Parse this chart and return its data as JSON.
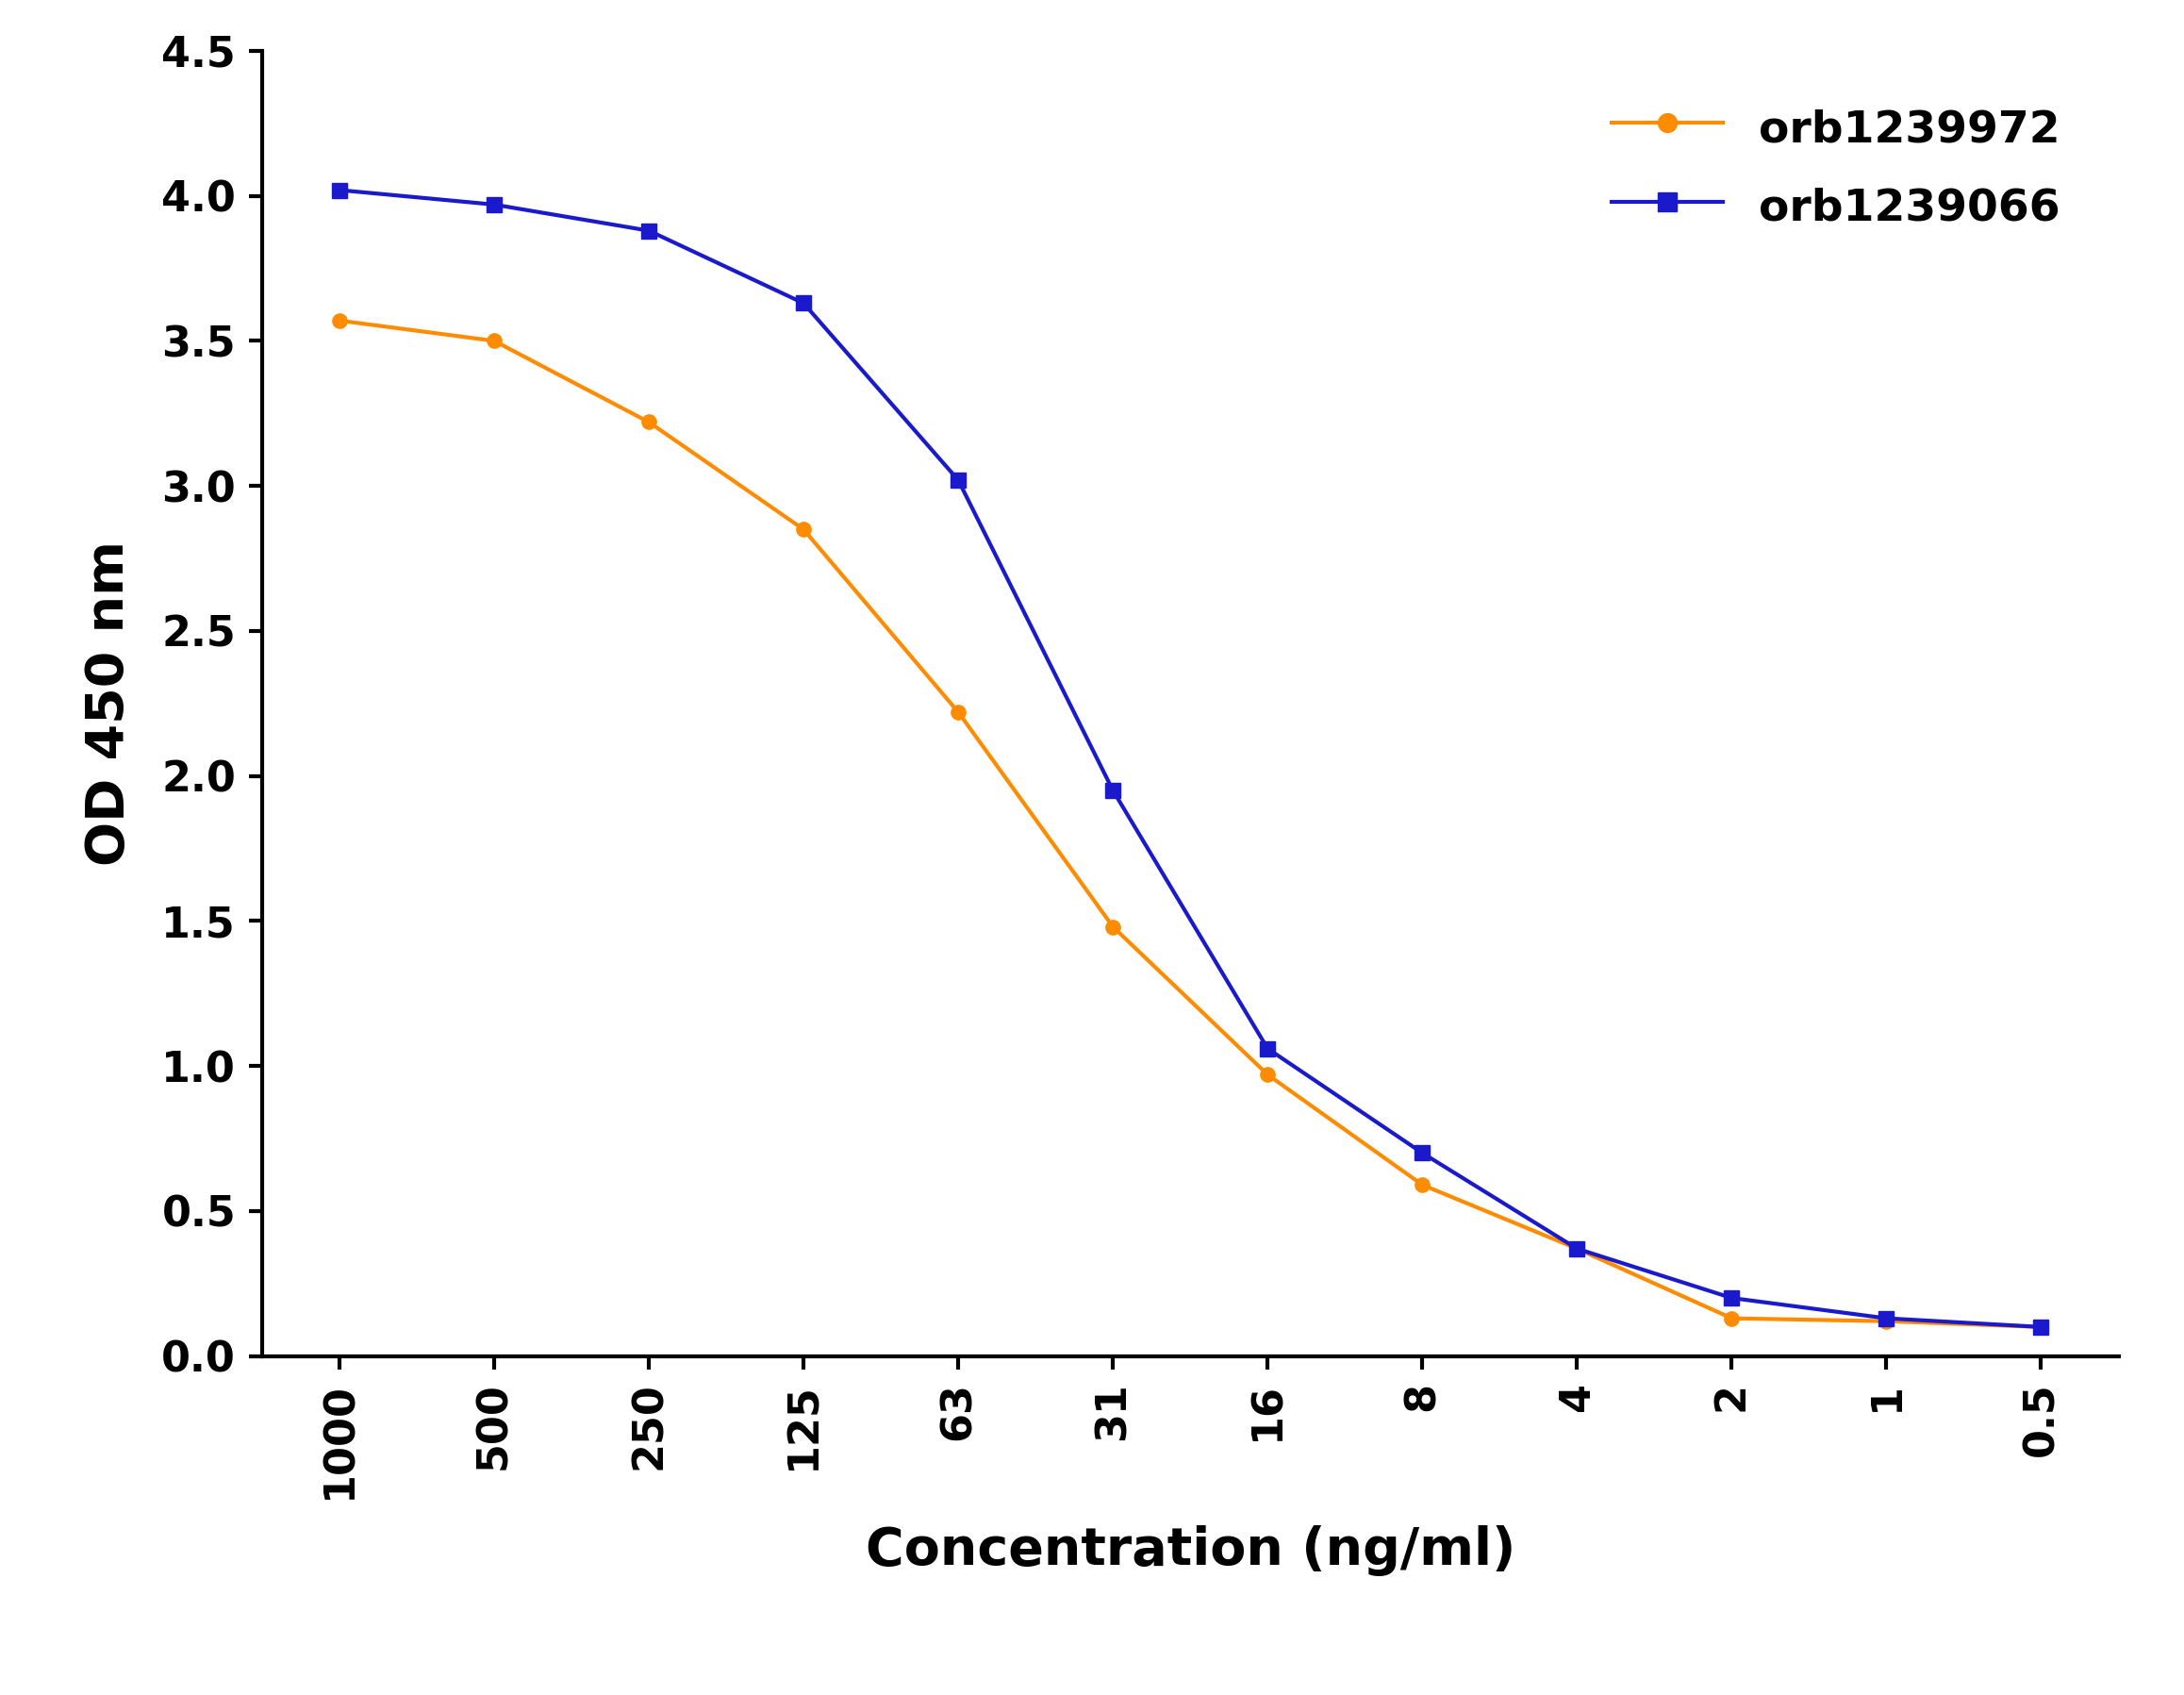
{
  "x_labels": [
    "1000",
    "500",
    "250",
    "125",
    "63",
    "31",
    "16",
    "8",
    "4",
    "2",
    "1",
    "0.5"
  ],
  "x_positions": [
    0,
    1,
    2,
    3,
    4,
    5,
    6,
    7,
    8,
    9,
    10,
    11
  ],
  "orb1239972_y": [
    3.57,
    3.5,
    3.22,
    2.85,
    2.22,
    1.48,
    0.97,
    0.59,
    0.37,
    0.13,
    0.12,
    0.1
  ],
  "orb1239066_y": [
    4.02,
    3.97,
    3.88,
    3.63,
    3.02,
    1.95,
    1.06,
    0.7,
    0.37,
    0.2,
    0.13,
    0.1
  ],
  "orb1239972_color": "#FF8C00",
  "orb1239066_color": "#1A1ACC",
  "orb1239972_label": "orb1239972",
  "orb1239066_label": "orb1239066",
  "xlabel": "Concentration (ng/ml)",
  "ylabel": "OD 450 nm",
  "ylim": [
    0,
    4.5
  ],
  "yticks": [
    0.0,
    0.5,
    1.0,
    1.5,
    2.0,
    2.5,
    3.0,
    3.5,
    4.0,
    4.5
  ],
  "background_color": "#ffffff",
  "linewidth": 3.0,
  "markersize": 11
}
